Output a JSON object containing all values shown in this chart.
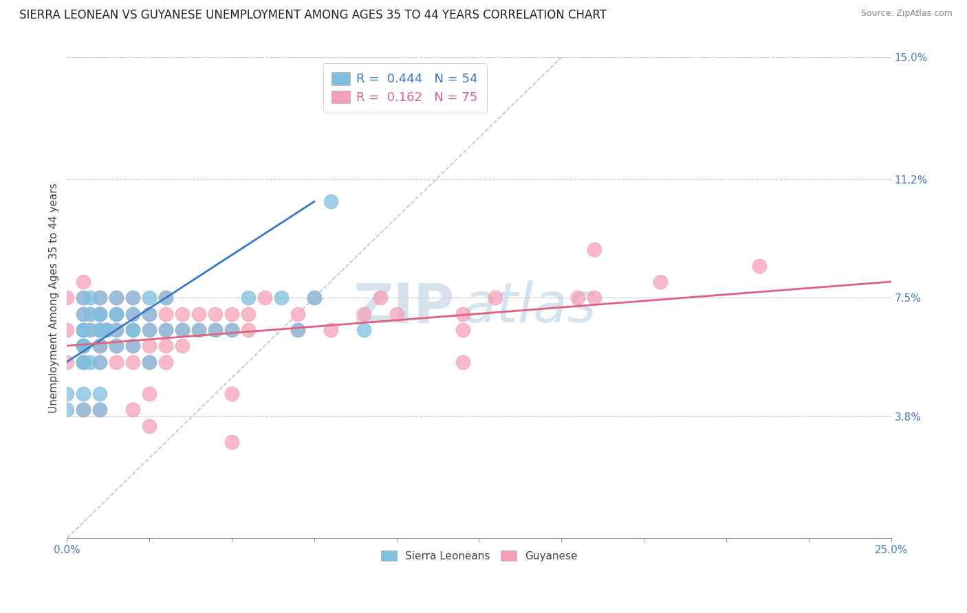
{
  "title": "SIERRA LEONEAN VS GUYANESE UNEMPLOYMENT AMONG AGES 35 TO 44 YEARS CORRELATION CHART",
  "source_text": "Source: ZipAtlas.com",
  "ylabel": "Unemployment Among Ages 35 to 44 years",
  "xlim": [
    0.0,
    0.25
  ],
  "ylim": [
    0.0,
    0.15
  ],
  "xticks": [
    0.0,
    0.025,
    0.05,
    0.075,
    0.1,
    0.125,
    0.15,
    0.175,
    0.2,
    0.225,
    0.25
  ],
  "ytick_positions": [
    0.038,
    0.075,
    0.112,
    0.15
  ],
  "ytick_labels": [
    "3.8%",
    "7.5%",
    "11.2%",
    "15.0%"
  ],
  "grid_color": "#c8c8c8",
  "background_color": "#ffffff",
  "title_fontsize": 12,
  "axis_label_fontsize": 11,
  "tick_fontsize": 11,
  "sierra_color": "#7fbfdf",
  "guyanese_color": "#f5a0b8",
  "sierra_line_color": "#3377cc",
  "guyanese_line_color": "#e06080",
  "legend_R_sierra": "0.444",
  "legend_N_sierra": "54",
  "legend_R_guyanese": "0.162",
  "legend_N_guyanese": "75",
  "legend_label_sierra": "Sierra Leoneans",
  "legend_label_guyanese": "Guyanese",
  "watermark_text1": "ZIP",
  "watermark_text2": "atlas",
  "sierra_x": [
    0.005,
    0.005,
    0.005,
    0.005,
    0.005,
    0.005,
    0.005,
    0.005,
    0.005,
    0.007,
    0.007,
    0.007,
    0.007,
    0.01,
    0.01,
    0.01,
    0.01,
    0.01,
    0.01,
    0.01,
    0.012,
    0.012,
    0.015,
    0.015,
    0.015,
    0.015,
    0.015,
    0.02,
    0.02,
    0.02,
    0.02,
    0.02,
    0.025,
    0.025,
    0.025,
    0.025,
    0.03,
    0.03,
    0.035,
    0.04,
    0.045,
    0.05,
    0.055,
    0.065,
    0.07,
    0.075,
    0.08,
    0.09,
    0.01,
    0.005,
    0.0,
    0.0,
    0.005,
    0.01
  ],
  "sierra_y": [
    0.055,
    0.055,
    0.06,
    0.06,
    0.06,
    0.065,
    0.065,
    0.07,
    0.075,
    0.055,
    0.065,
    0.07,
    0.075,
    0.055,
    0.06,
    0.065,
    0.065,
    0.07,
    0.07,
    0.075,
    0.065,
    0.065,
    0.06,
    0.065,
    0.07,
    0.07,
    0.075,
    0.06,
    0.065,
    0.065,
    0.07,
    0.075,
    0.055,
    0.065,
    0.07,
    0.075,
    0.065,
    0.075,
    0.065,
    0.065,
    0.065,
    0.065,
    0.075,
    0.075,
    0.065,
    0.075,
    0.105,
    0.065,
    0.04,
    0.04,
    0.04,
    0.045,
    0.045,
    0.045
  ],
  "guyanese_x": [
    0.0,
    0.0,
    0.0,
    0.005,
    0.005,
    0.005,
    0.005,
    0.005,
    0.005,
    0.005,
    0.007,
    0.007,
    0.01,
    0.01,
    0.01,
    0.01,
    0.01,
    0.01,
    0.01,
    0.01,
    0.012,
    0.015,
    0.015,
    0.015,
    0.015,
    0.015,
    0.02,
    0.02,
    0.02,
    0.02,
    0.02,
    0.025,
    0.025,
    0.025,
    0.025,
    0.03,
    0.03,
    0.03,
    0.03,
    0.03,
    0.035,
    0.035,
    0.035,
    0.04,
    0.04,
    0.045,
    0.045,
    0.05,
    0.05,
    0.055,
    0.055,
    0.06,
    0.07,
    0.07,
    0.075,
    0.08,
    0.09,
    0.095,
    0.1,
    0.12,
    0.12,
    0.13,
    0.155,
    0.16,
    0.18,
    0.21,
    0.005,
    0.01,
    0.02,
    0.025,
    0.05,
    0.12,
    0.16,
    0.05,
    0.025
  ],
  "guyanese_y": [
    0.055,
    0.065,
    0.075,
    0.055,
    0.055,
    0.06,
    0.065,
    0.07,
    0.075,
    0.08,
    0.065,
    0.07,
    0.055,
    0.06,
    0.06,
    0.065,
    0.065,
    0.07,
    0.07,
    0.075,
    0.065,
    0.055,
    0.06,
    0.065,
    0.07,
    0.075,
    0.055,
    0.06,
    0.065,
    0.07,
    0.075,
    0.055,
    0.06,
    0.065,
    0.07,
    0.055,
    0.06,
    0.065,
    0.07,
    0.075,
    0.06,
    0.065,
    0.07,
    0.065,
    0.07,
    0.065,
    0.07,
    0.065,
    0.07,
    0.065,
    0.07,
    0.075,
    0.065,
    0.07,
    0.075,
    0.065,
    0.07,
    0.075,
    0.07,
    0.065,
    0.07,
    0.075,
    0.075,
    0.09,
    0.08,
    0.085,
    0.04,
    0.04,
    0.04,
    0.045,
    0.03,
    0.055,
    0.075,
    0.045,
    0.035
  ],
  "sierra_line_x0": 0.0,
  "sierra_line_y0": 0.055,
  "sierra_line_x1": 0.075,
  "sierra_line_y1": 0.105,
  "guyanese_line_x0": 0.0,
  "guyanese_line_y0": 0.06,
  "guyanese_line_x1": 0.25,
  "guyanese_line_y1": 0.08
}
